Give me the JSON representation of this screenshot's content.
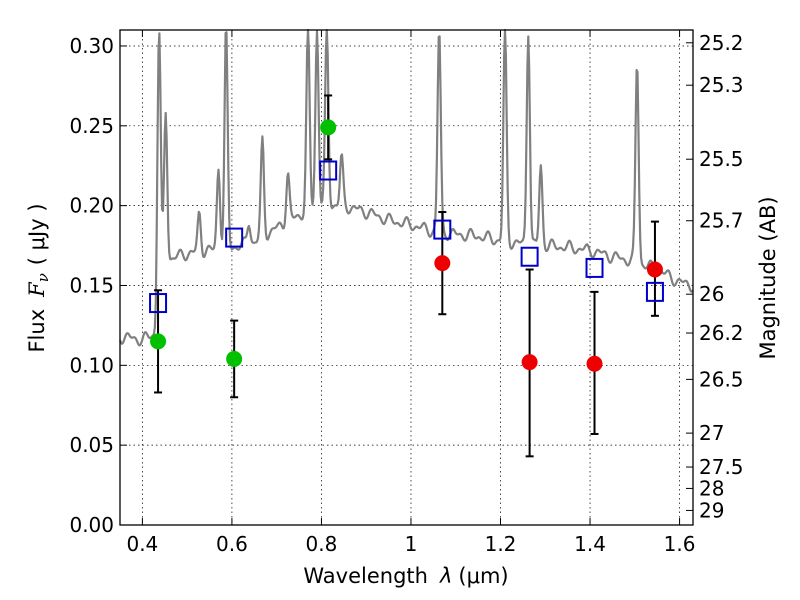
{
  "chart_data": {
    "type": "scatter",
    "xlabel": "Wavelength",
    "xlabel_symbol": "λ",
    "xlabel_unit": "(μm)",
    "ylabel": "Flux",
    "ylabel_symbol": "F",
    "ylabel_subscript": "ν",
    "ylabel_unit": "( μJy )",
    "y2label": "Magnitude (AB)",
    "xlim": [
      0.35,
      1.63
    ],
    "ylim": [
      0.0,
      0.31
    ],
    "grid": true,
    "x_ticks": [
      0.4,
      0.6,
      0.8,
      1.0,
      1.2,
      1.4,
      1.6
    ],
    "x_tick_labels": [
      "0.4",
      "0.6",
      "0.8",
      "1",
      "1.2",
      "1.4",
      "1.6"
    ],
    "y_ticks": [
      0.0,
      0.05,
      0.1,
      0.15,
      0.2,
      0.25,
      0.3
    ],
    "y_tick_labels": [
      "0.00",
      "0.05",
      "0.10",
      "0.15",
      "0.20",
      "0.25",
      "0.30"
    ],
    "magnitude_ticks": [
      "25.2",
      "25.3",
      "25.5",
      "25.7",
      "26",
      "26.2",
      "26.5",
      "27",
      "27.5",
      "28",
      "29"
    ],
    "colors": {
      "spectrum": "#808080",
      "model": "#0000cc",
      "green": "#00c000",
      "red": "#ee0000",
      "errorbar": "#000000"
    },
    "series": [
      {
        "marker": "square-open",
        "color": "#0000cc",
        "x": [
          0.435,
          0.605,
          0.815,
          1.07,
          1.265,
          1.41,
          1.545
        ],
        "y": [
          0.139,
          0.18,
          0.222,
          0.185,
          0.168,
          0.161,
          0.146
        ]
      },
      {
        "marker": "circle",
        "color": "#00c000",
        "x": [
          0.435,
          0.605,
          0.815
        ],
        "y": [
          0.115,
          0.104,
          0.249
        ],
        "yerr": [
          0.032,
          0.024,
          0.02
        ]
      },
      {
        "marker": "circle",
        "color": "#ee0000",
        "x": [
          1.07,
          1.265,
          1.41,
          1.545
        ],
        "y": [
          0.164,
          0.102,
          0.101,
          0.16
        ],
        "yerr": [
          0.032,
          0.06,
          0.045,
          0.03
        ],
        "yerr_capped_upper": [
          0.196,
          0.16,
          0.146,
          0.19
        ],
        "yerr_capped_lower": [
          0.132,
          0.043,
          0.057,
          0.131
        ]
      },
      {
        "type": "line",
        "color": "#808080",
        "continuum_x": [
          0.35,
          0.4,
          0.43,
          0.44,
          0.5,
          0.55,
          0.6,
          0.65,
          0.7,
          0.75,
          0.8,
          0.85,
          0.9,
          0.95,
          1.0,
          1.05,
          1.1,
          1.15,
          1.2,
          1.25,
          1.3,
          1.35,
          1.4,
          1.45,
          1.5,
          1.55,
          1.6,
          1.63
        ],
        "continuum_y": [
          0.118,
          0.116,
          0.12,
          0.165,
          0.17,
          0.172,
          0.174,
          0.177,
          0.186,
          0.194,
          0.201,
          0.2,
          0.196,
          0.191,
          0.188,
          0.184,
          0.182,
          0.181,
          0.178,
          0.176,
          0.175,
          0.174,
          0.172,
          0.168,
          0.165,
          0.16,
          0.152,
          0.15
        ],
        "emission_lines": [
          {
            "x": 0.437,
            "y": 0.31
          },
          {
            "x": 0.452,
            "y": 0.258
          },
          {
            "x": 0.527,
            "y": 0.195
          },
          {
            "x": 0.57,
            "y": 0.224
          },
          {
            "x": 0.587,
            "y": 0.31
          },
          {
            "x": 0.638,
            "y": 0.19
          },
          {
            "x": 0.668,
            "y": 0.24
          },
          {
            "x": 0.725,
            "y": 0.22
          },
          {
            "x": 0.77,
            "y": 0.31
          },
          {
            "x": 0.79,
            "y": 0.31
          },
          {
            "x": 0.812,
            "y": 0.31
          },
          {
            "x": 0.845,
            "y": 0.23
          },
          {
            "x": 1.063,
            "y": 0.31
          },
          {
            "x": 1.21,
            "y": 0.31
          },
          {
            "x": 1.262,
            "y": 0.31
          },
          {
            "x": 1.29,
            "y": 0.225
          },
          {
            "x": 1.505,
            "y": 0.29
          }
        ]
      }
    ]
  }
}
